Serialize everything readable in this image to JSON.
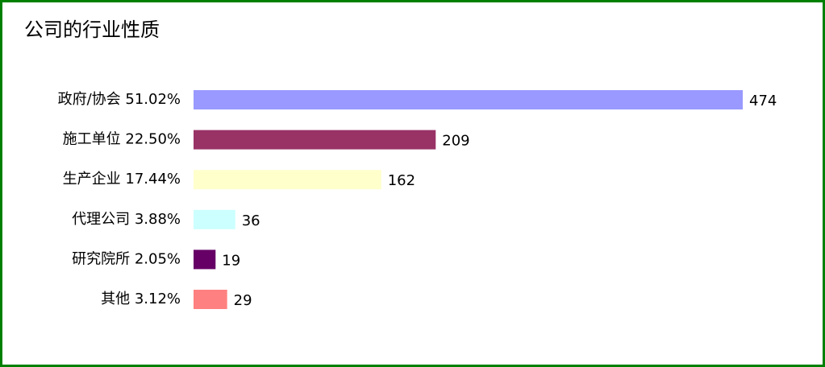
{
  "chart_data": {
    "type": "hbar",
    "title": "公司的行业性质",
    "categories": [
      "政府/协会 51.02%",
      "施工单位 22.50%",
      "生产企业 17.44%",
      "代理公司 3.88%",
      "研究院所 2.05%",
      "其他 3.12%"
    ],
    "values": [
      474,
      209,
      162,
      36,
      19,
      29
    ],
    "colors": [
      "#9999ff",
      "#993366",
      "#ffffcc",
      "#ccffff",
      "#660066",
      "#ff8080"
    ]
  }
}
